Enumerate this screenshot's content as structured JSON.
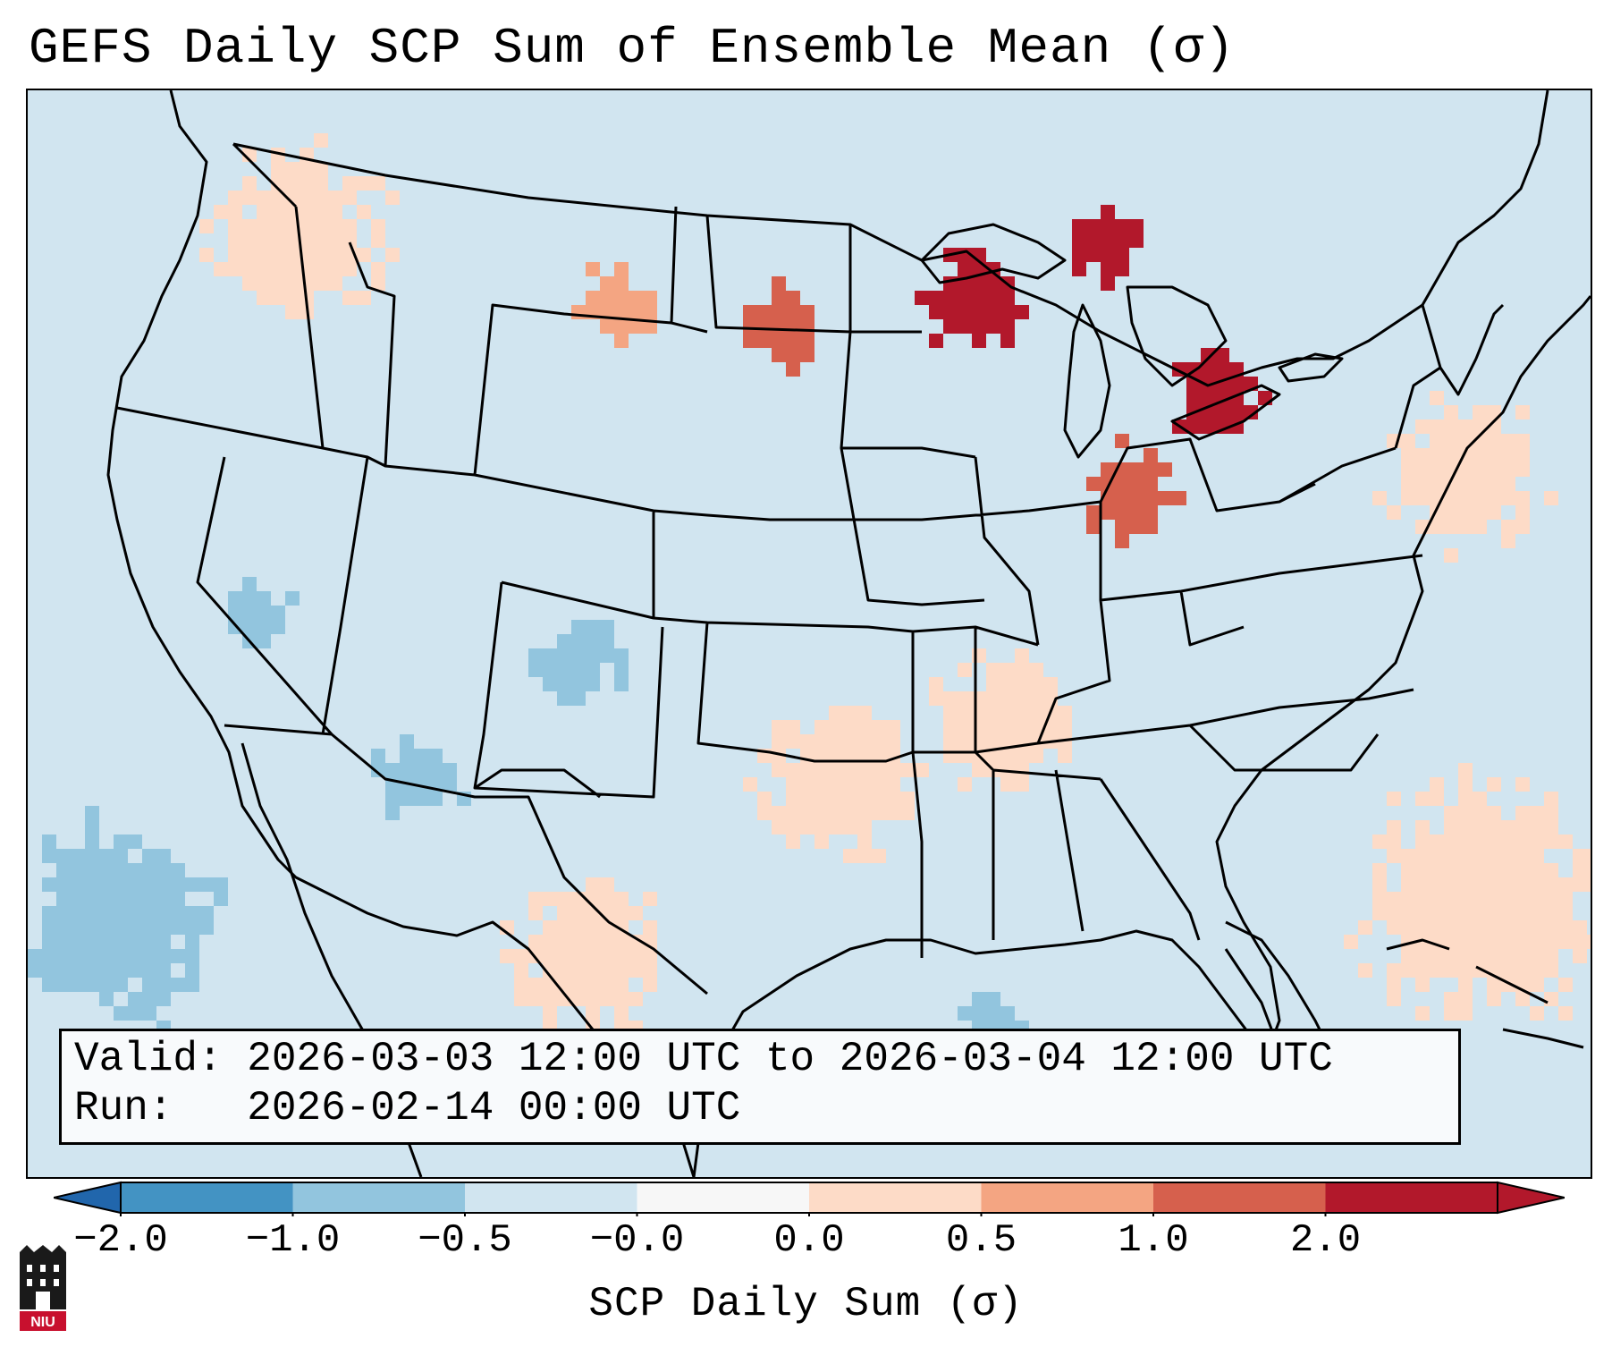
{
  "title": "GEFS Daily SCP Sum of Ensemble Mean (σ)",
  "info": {
    "valid_label": "Valid:",
    "valid_value": "2026-03-03 12:00 UTC to 2026-03-04 12:00 UTC",
    "run_label": "Run:",
    "run_value": "2026-02-14 00:00 UTC"
  },
  "colorbar": {
    "label": "SCP Daily Sum (σ)",
    "ticks": [
      "−2.0",
      "−1.0",
      "−0.5",
      "−0.0",
      "0.0",
      "0.5",
      "1.0",
      "2.0"
    ],
    "colors": [
      "#4393c3",
      "#92c5de",
      "#d1e5f0",
      "#f7f7f7",
      "#fddbc7",
      "#f4a582",
      "#d6604d",
      "#b2182b"
    ],
    "extend_low_color": "#2166ac",
    "extend_high_color": "#b2182b"
  },
  "map": {
    "background_color": "#d1e5f0",
    "border_color": "#000000"
  },
  "logo": {
    "text": "NIU",
    "icon": "niu-castle-logo-icon"
  }
}
